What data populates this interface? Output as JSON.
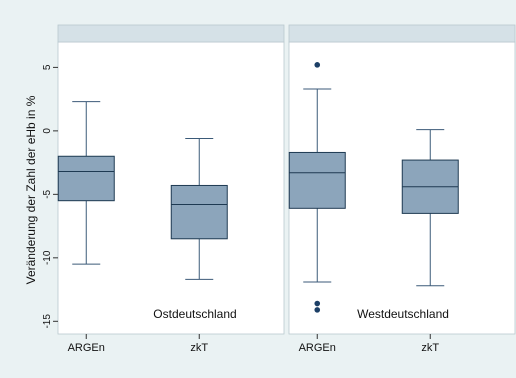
{
  "colors": {
    "outer_bg": "#eaf2f3",
    "panel_bg": "#ffffff",
    "strip_bg": "#d5e1e7",
    "box_fill": "#8ca5bb",
    "box_line": "#1e3a52",
    "whisker": "#3b5a78",
    "outlier": "#1c3f66"
  },
  "chart_data": {
    "type": "box",
    "ylabel": "Veränderung der Zahl der eHb in %",
    "ylim": [
      -16,
      7
    ],
    "yticks": [
      5,
      0,
      -5,
      -10,
      -15
    ],
    "ytick_labels": [
      "5",
      "0",
      "-5",
      "-10",
      "-15"
    ],
    "panels": [
      {
        "name": "Ostdeutschland",
        "categories": [
          "ARGEn",
          "zkT"
        ],
        "boxes": [
          {
            "category": "ARGEn",
            "whisker_low": -10.5,
            "q1": -5.5,
            "median": -3.2,
            "q3": -2.0,
            "whisker_high": 2.3,
            "outliers": []
          },
          {
            "category": "zkT",
            "whisker_low": -11.7,
            "q1": -8.5,
            "median": -5.8,
            "q3": -4.3,
            "whisker_high": -0.6,
            "outliers": []
          }
        ]
      },
      {
        "name": "Westdeutschland",
        "categories": [
          "ARGEn",
          "zkT"
        ],
        "boxes": [
          {
            "category": "ARGEn",
            "whisker_low": -11.9,
            "q1": -6.1,
            "median": -3.3,
            "q3": -1.7,
            "whisker_high": 3.3,
            "outliers": [
              5.2,
              -13.6,
              -14.1
            ]
          },
          {
            "category": "zkT",
            "whisker_low": -12.2,
            "q1": -6.5,
            "median": -4.4,
            "q3": -2.3,
            "whisker_high": 0.1,
            "outliers": []
          }
        ]
      }
    ]
  }
}
